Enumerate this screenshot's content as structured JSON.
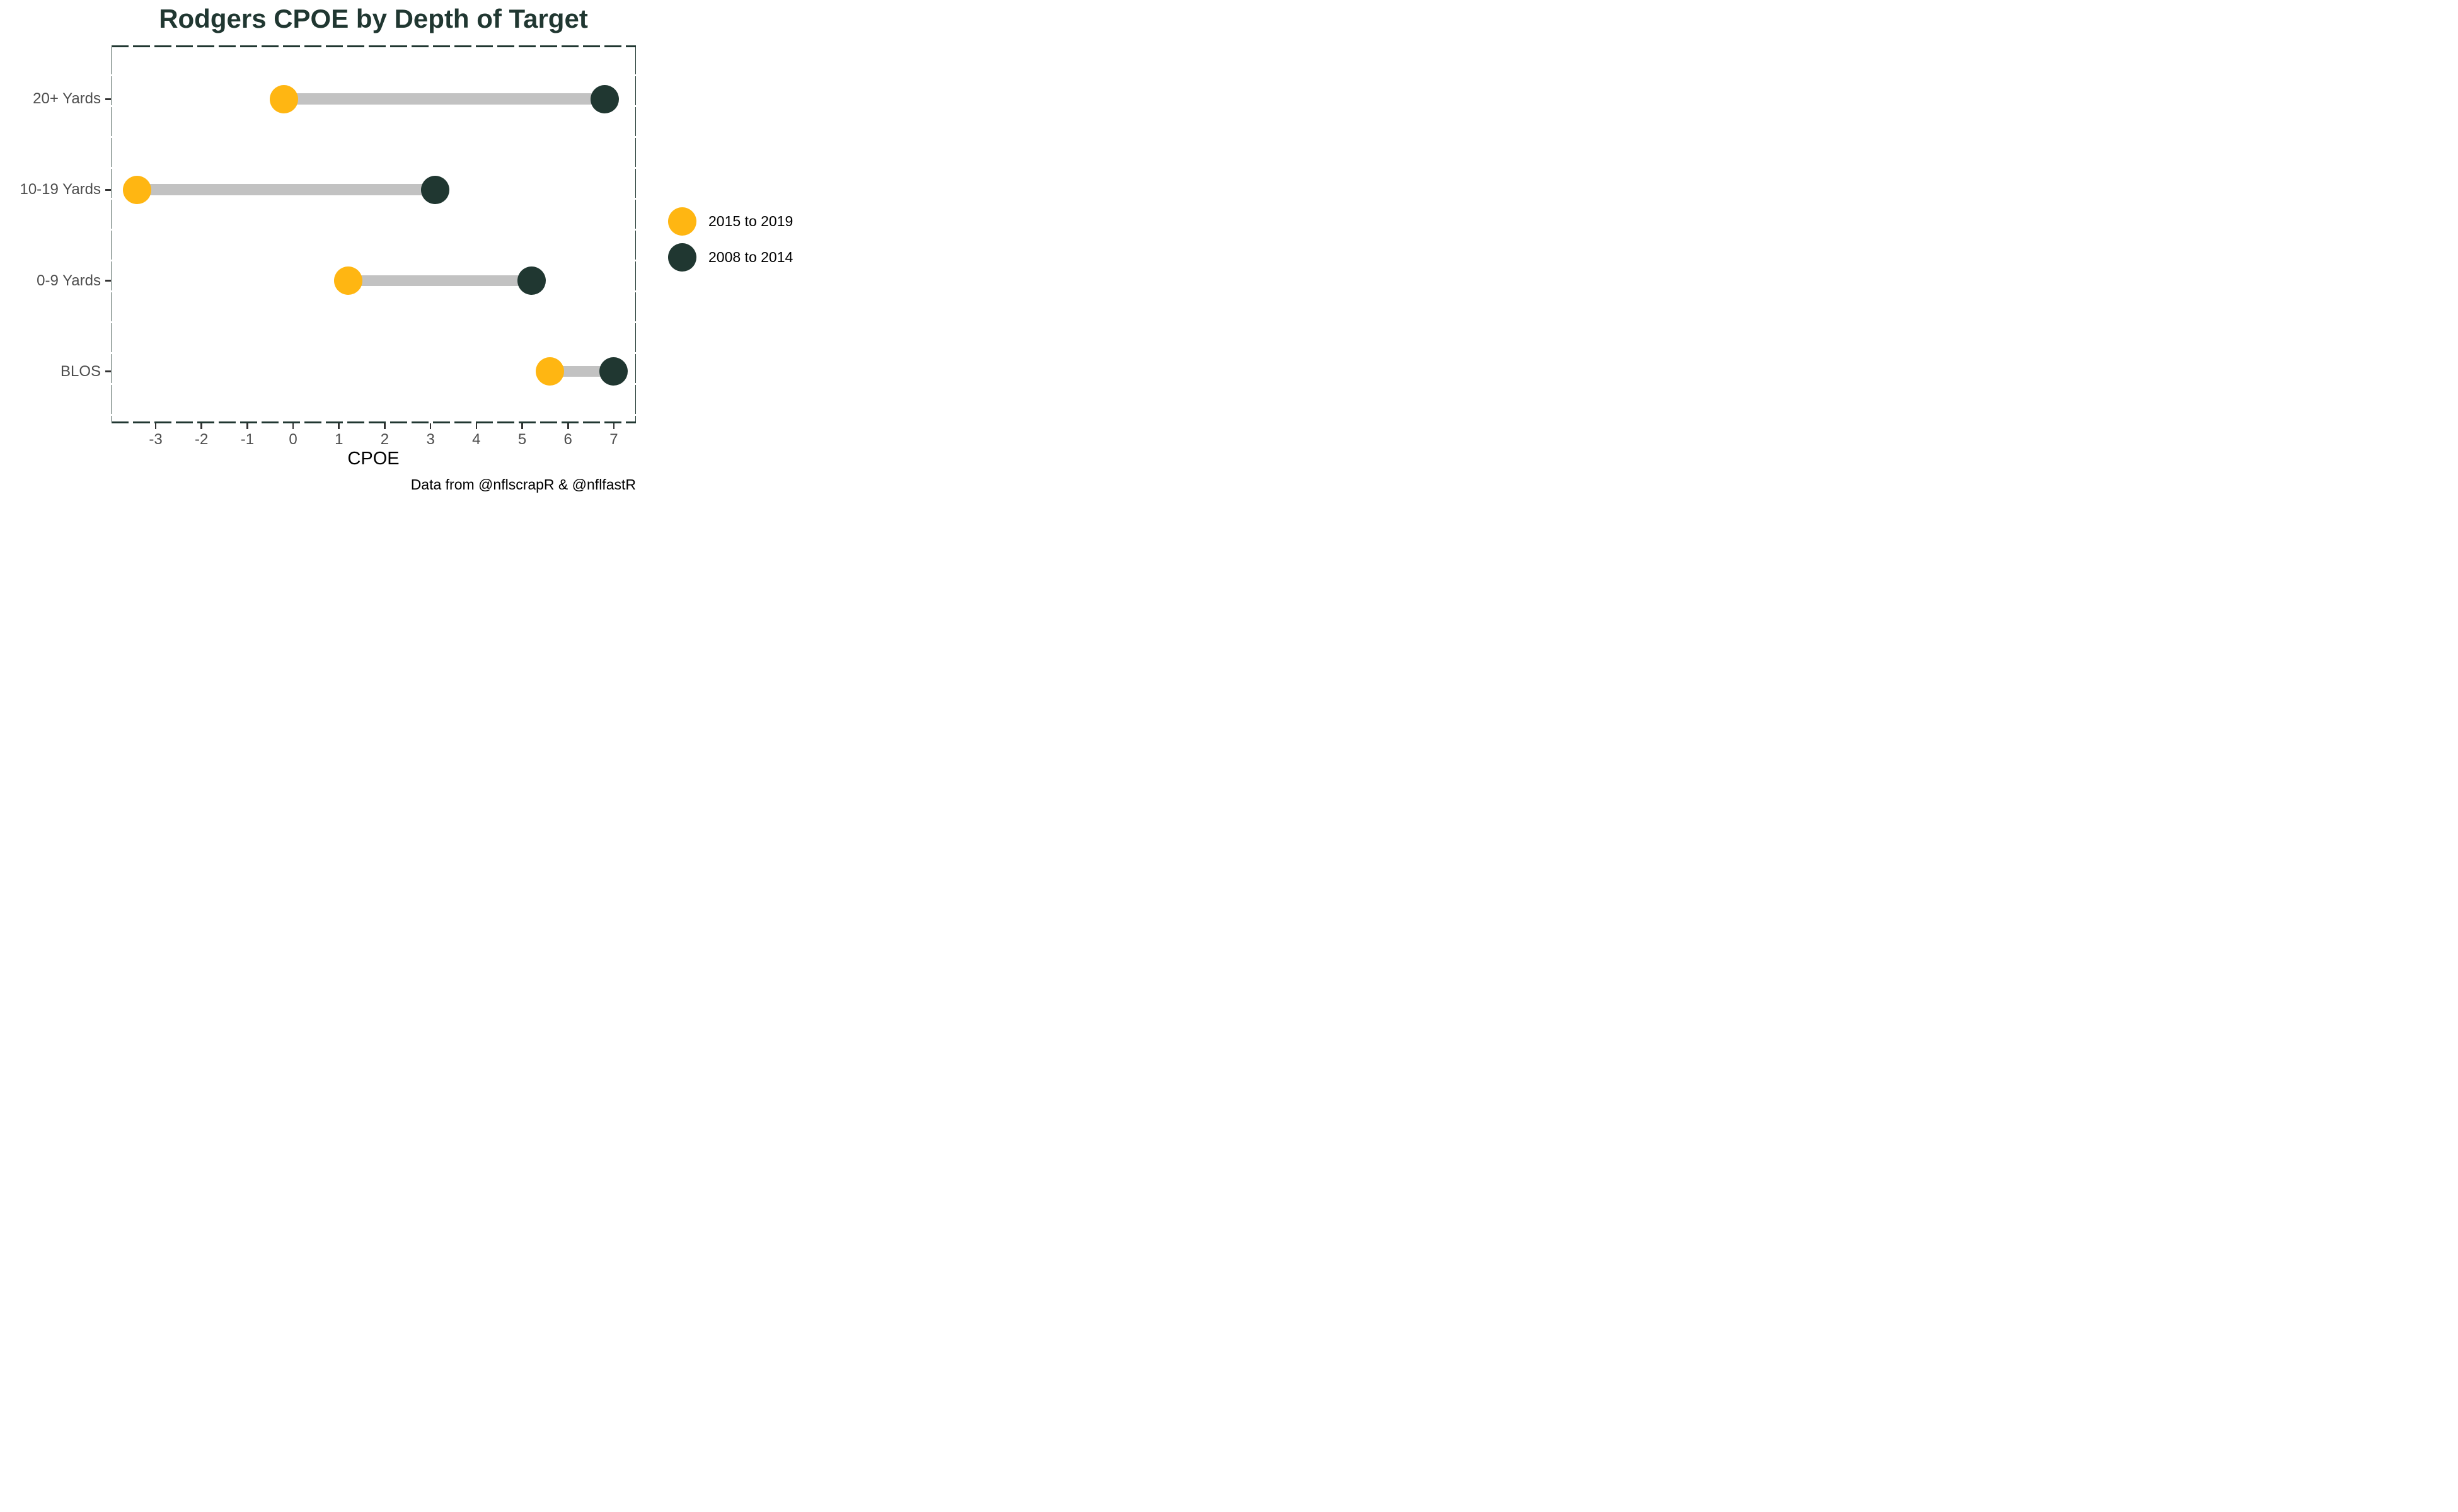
{
  "title": "Rodgers CPOE by Depth of Target",
  "caption": "Data from @nflscrapR & @nflfastR",
  "x_axis": {
    "label": "CPOE",
    "tick_labels": [
      "-3",
      "-2",
      "-1",
      "0",
      "1",
      "2",
      "3",
      "4",
      "5",
      "6",
      "7"
    ]
  },
  "y_axis": {
    "tick_labels": [
      "20+ Yards",
      "10-19 Yards",
      "0-9 Yards",
      "BLOS"
    ]
  },
  "legend": {
    "items": [
      {
        "label": "2015 to 2019",
        "color": "#FFB612"
      },
      {
        "label": "2008 to 2014",
        "color": "#203731"
      }
    ]
  },
  "colors": {
    "gold": "#FFB612",
    "dark_green": "#203731",
    "connector_gray": "#C2C2C2",
    "axis_text_gray": "#4D4D4D",
    "tick_mark": "#333333",
    "panel_border": "#203731"
  },
  "chart_data": {
    "type": "dumbbell",
    "orientation": "horizontal",
    "title": "Rodgers CPOE by Depth of Target",
    "xlabel": "CPOE",
    "categories": [
      "20+ Yards",
      "10-19 Yards",
      "0-9 Yards",
      "BLOS"
    ],
    "series": [
      {
        "name": "2015 to 2019",
        "color": "#FFB612",
        "values": [
          -0.2,
          -3.4,
          1.2,
          5.6
        ]
      },
      {
        "name": "2008 to 2014",
        "color": "#203731",
        "values": [
          6.8,
          3.1,
          5.2,
          7.0
        ]
      }
    ],
    "connector_color": "#C2C2C2",
    "xlim": [
      -3.97,
      7.49
    ],
    "xticks": [
      -3,
      -2,
      -1,
      0,
      1,
      2,
      3,
      4,
      5,
      6,
      7
    ],
    "grid": false,
    "legend_position": "right",
    "panel_border_style": "dashed"
  }
}
